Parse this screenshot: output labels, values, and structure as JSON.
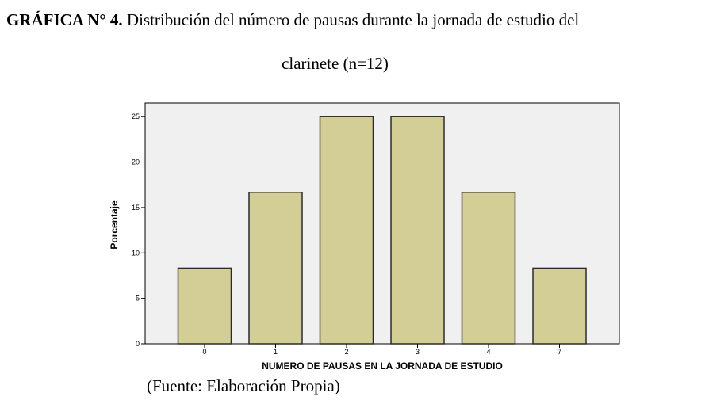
{
  "caption": {
    "label": "GRÁFICA N° 4.",
    "title_line1": "Distribución del número de pausas durante la jornada de estudio del",
    "title_line2": "clarinete (n=12)"
  },
  "source": "(Fuente: Elaboración Propia)",
  "colors": {
    "bar_fill": "#D3CD96",
    "bar_stroke": "#2b2b2b",
    "plot_background": "#F0F0F0"
  },
  "chart_data": {
    "type": "bar",
    "categories": [
      "0",
      "1",
      "2",
      "3",
      "4",
      "7"
    ],
    "values": [
      8.33,
      16.67,
      25,
      25,
      16.67,
      8.33
    ],
    "xlabel": "NUMERO DE PAUSAS EN LA JORNADA DE ESTUDIO",
    "ylabel": "Porcentaje",
    "ylim": [
      0,
      26.5
    ],
    "yticks": [
      0,
      5,
      10,
      15,
      20,
      25
    ],
    "grid": false,
    "legend": "none"
  }
}
